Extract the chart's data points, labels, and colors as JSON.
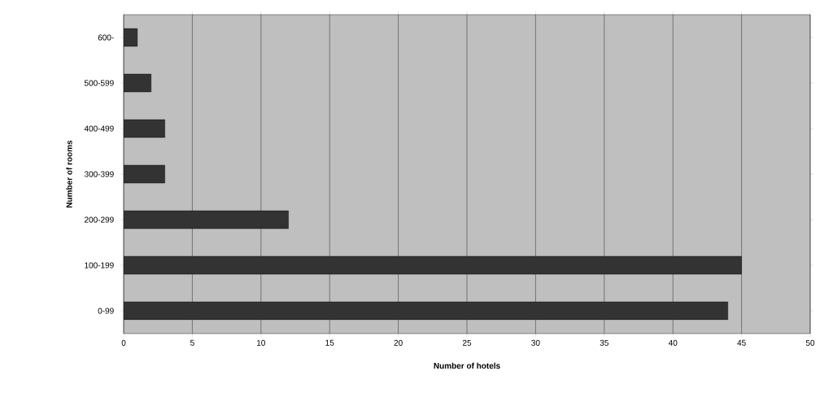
{
  "chart_data": {
    "type": "bar",
    "orientation": "horizontal",
    "xlabel": "Number of hotels",
    "ylabel": "Number of rooms",
    "categories": [
      "600-",
      "500-599",
      "400-499",
      "300-399",
      "200-299",
      "100-199",
      "0-99"
    ],
    "values": [
      1,
      2,
      3,
      3,
      12,
      45,
      44
    ],
    "color": "#333333",
    "xlim": [
      0,
      50
    ],
    "xticks": [
      0,
      5,
      10,
      15,
      20,
      25,
      30,
      35,
      40,
      45,
      50
    ],
    "grid": "x"
  }
}
